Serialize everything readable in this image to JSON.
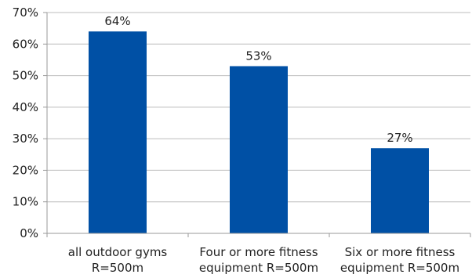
{
  "chart_data": {
    "type": "bar",
    "categories": [
      [
        "all outdoor gyms",
        "R=500m"
      ],
      [
        "Four or more fitness",
        "equipment R=500m"
      ],
      [
        "Six or more fitness",
        "equipment R=500m"
      ]
    ],
    "values": [
      64,
      53,
      27
    ],
    "data_labels": [
      "64%",
      "53%",
      "27%"
    ],
    "y_ticks": [
      0,
      10,
      20,
      30,
      40,
      50,
      60,
      70
    ],
    "y_tick_labels": [
      "0%",
      "10%",
      "20%",
      "30%",
      "40%",
      "50%",
      "60%",
      "70%"
    ],
    "ylim": [
      0,
      70
    ],
    "grid": true,
    "legend": "none",
    "bar_color": "#0050a5"
  }
}
